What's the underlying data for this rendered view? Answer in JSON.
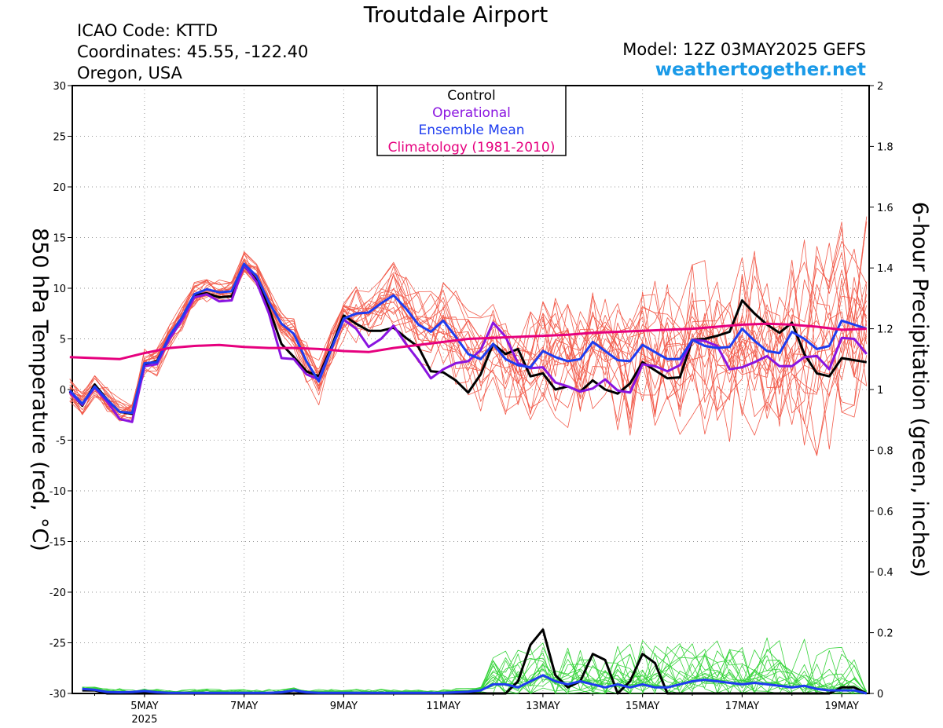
{
  "header": {
    "title": "Troutdale Airport",
    "icao": "ICAO Code: KTTD",
    "coords": "Coordinates: 45.55, -122.40",
    "region": "Oregon, USA",
    "model": "Model: 12Z 03MAY2025 GEFS",
    "site": "weathertogether.net"
  },
  "legend": {
    "items": [
      {
        "label": "Control",
        "color": "#000000"
      },
      {
        "label": "Operational",
        "color": "#8a14e0"
      },
      {
        "label": "Ensemble Mean",
        "color": "#1e3cf0"
      },
      {
        "label": "Climatology (1981-2010)",
        "color": "#e6007e"
      }
    ]
  },
  "chart_data": {
    "type": "line",
    "ylabel": "850 hPa Temperature (red, °C)",
    "y2label": "6-hour Precipitation (green, inches)",
    "ylim": [
      -30,
      30
    ],
    "y2lim": [
      0,
      2
    ],
    "yticks": [
      "30",
      "25",
      "20",
      "15",
      "10",
      "5",
      "0",
      "-5",
      "-10",
      "-15",
      "-20",
      "-25",
      "-30"
    ],
    "y2ticks": [
      "2",
      "1.8",
      "1.6",
      "1.4",
      "1.2",
      "1",
      "0.8",
      "0.6",
      "0.4",
      "0.2",
      "0"
    ],
    "xlim": [
      3.55,
      19.55
    ],
    "xticks": [
      {
        "day": 5,
        "label": "5MAY",
        "sub": "2025"
      },
      {
        "day": 7,
        "label": "7MAY",
        "sub": ""
      },
      {
        "day": 9,
        "label": "9MAY",
        "sub": ""
      },
      {
        "day": 11,
        "label": "11MAY",
        "sub": ""
      },
      {
        "day": 13,
        "label": "13MAY",
        "sub": ""
      },
      {
        "day": 15,
        "label": "15MAY",
        "sub": ""
      },
      {
        "day": 17,
        "label": "17MAY",
        "sub": ""
      },
      {
        "day": 19,
        "label": "19MAY",
        "sub": ""
      }
    ],
    "grid": true,
    "colors": {
      "control": "#000000",
      "operational": "#8a14e0",
      "mean": "#1e3cf0",
      "climatology": "#e6007e",
      "members_temp": "#f25a4a",
      "members_precip": "#36d43a"
    },
    "temperature_series": [
      {
        "name": "Control",
        "x": [
          3.5,
          3.75,
          4.0,
          4.25,
          4.5,
          4.75,
          5.0,
          5.25,
          5.5,
          5.75,
          6.0,
          6.25,
          6.5,
          6.75,
          7.0,
          7.25,
          7.5,
          7.75,
          8.0,
          8.25,
          8.5,
          8.75,
          9.0,
          9.25,
          9.5,
          9.75,
          10.0,
          10.25,
          10.5,
          10.75,
          11.0,
          11.25,
          11.5,
          11.75,
          12.0,
          12.25,
          12.5,
          12.75,
          13.0,
          13.25,
          13.5,
          13.75,
          14.0,
          14.25,
          14.5,
          14.75,
          15.0,
          15.25,
          15.5,
          15.75,
          16.0,
          16.25,
          16.5,
          16.75,
          17.0,
          17.25,
          17.5,
          17.75,
          18.0,
          18.25,
          18.5,
          18.75,
          19.0,
          19.25,
          19.5
        ],
        "values": [
          -0.2,
          -1.6,
          0.5,
          -1.0,
          -2.2,
          -2.4,
          2.5,
          2.8,
          5.2,
          7.0,
          9.3,
          9.5,
          9.1,
          9.2,
          12.2,
          10.8,
          8.0,
          4.5,
          3.2,
          1.8,
          1.3,
          4.2,
          7.3,
          6.5,
          5.8,
          5.8,
          6.1,
          5.1,
          4.2,
          1.8,
          1.7,
          0.9,
          -0.3,
          1.5,
          4.5,
          3.5,
          4.0,
          1.3,
          1.6,
          0.0,
          0.3,
          -0.2,
          0.9,
          0.0,
          -0.4,
          0.6,
          2.7,
          1.9,
          1.1,
          1.2,
          4.9,
          5.0,
          5.3,
          5.7,
          8.8,
          7.5,
          6.4,
          5.6,
          6.6,
          3.5,
          1.6,
          1.3,
          3.1,
          2.9,
          2.7
        ]
      },
      {
        "name": "Operational",
        "x": [
          3.5,
          3.75,
          4.0,
          4.25,
          4.5,
          4.75,
          5.0,
          5.25,
          5.5,
          5.75,
          6.0,
          6.25,
          6.5,
          6.75,
          7.0,
          7.25,
          7.5,
          7.75,
          8.0,
          8.25,
          8.5,
          8.75,
          9.0,
          9.25,
          9.5,
          9.75,
          10.0,
          10.25,
          10.5,
          10.75,
          11.0,
          11.25,
          11.5,
          11.75,
          12.0,
          12.25,
          12.5,
          12.75,
          13.0,
          13.25,
          13.5,
          13.75,
          14.0,
          14.25,
          14.5,
          14.75,
          15.0,
          15.25,
          15.5,
          15.75,
          16.0,
          16.25,
          16.5,
          16.75,
          17.0,
          17.25,
          17.5,
          17.75,
          18.0,
          18.25,
          18.5,
          18.75,
          19.0,
          19.25,
          19.5
        ],
        "values": [
          -0.3,
          -1.5,
          0.2,
          -1.2,
          -2.9,
          -3.2,
          2.3,
          2.5,
          5.0,
          6.8,
          9.1,
          9.4,
          8.7,
          8.8,
          12.3,
          10.6,
          7.5,
          3.1,
          3.0,
          1.5,
          1.0,
          4.0,
          6.9,
          6.0,
          4.2,
          5.0,
          6.3,
          4.5,
          2.9,
          1.1,
          2.0,
          2.6,
          2.8,
          3.9,
          6.6,
          5.2,
          2.6,
          2.1,
          2.2,
          0.7,
          0.3,
          -0.2,
          0.1,
          1.0,
          -0.1,
          -0.3,
          2.5,
          2.3,
          1.8,
          2.4,
          4.9,
          4.8,
          4.3,
          2.0,
          2.2,
          2.7,
          3.3,
          2.3,
          2.3,
          3.2,
          3.3,
          2.0,
          5.1,
          5.0,
          3.5
        ]
      },
      {
        "name": "Ensemble Mean",
        "x": [
          3.5,
          3.75,
          4.0,
          4.25,
          4.5,
          4.75,
          5.0,
          5.25,
          5.5,
          5.75,
          6.0,
          6.25,
          6.5,
          6.75,
          7.0,
          7.25,
          7.5,
          7.75,
          8.0,
          8.25,
          8.5,
          8.75,
          9.0,
          9.25,
          9.5,
          9.75,
          10.0,
          10.25,
          10.5,
          10.75,
          11.0,
          11.25,
          11.5,
          11.75,
          12.0,
          12.25,
          12.5,
          12.75,
          13.0,
          13.25,
          13.5,
          13.75,
          14.0,
          14.25,
          14.5,
          14.75,
          15.0,
          15.25,
          15.5,
          15.75,
          16.0,
          16.25,
          16.5,
          16.75,
          17.0,
          17.25,
          17.5,
          17.75,
          18.0,
          18.25,
          18.5,
          18.75,
          19.0,
          19.25,
          19.5
        ],
        "values": [
          -0.1,
          -1.4,
          0.3,
          -1.0,
          -2.2,
          -2.3,
          2.6,
          2.7,
          5.3,
          7.1,
          9.4,
          9.9,
          9.6,
          9.7,
          12.4,
          11.2,
          8.6,
          6.5,
          5.5,
          2.8,
          0.8,
          4.0,
          7.0,
          7.5,
          7.6,
          8.5,
          9.3,
          8.0,
          6.4,
          5.7,
          6.8,
          5.2,
          3.5,
          3.0,
          4.5,
          3.0,
          2.4,
          2.2,
          3.8,
          3.2,
          2.8,
          3.0,
          4.7,
          3.8,
          2.9,
          2.8,
          4.4,
          3.7,
          3.0,
          3.0,
          4.9,
          4.3,
          4.1,
          4.2,
          6.0,
          4.8,
          3.8,
          3.6,
          5.7,
          5.0,
          4.0,
          4.3,
          6.8,
          6.4,
          6.0
        ]
      },
      {
        "name": "Climatology (1981-2010)",
        "x": [
          3.5,
          4.0,
          4.5,
          5.0,
          5.5,
          6.0,
          6.5,
          7.0,
          7.5,
          8.0,
          8.5,
          9.0,
          9.5,
          10.0,
          10.5,
          11.0,
          11.5,
          12.0,
          12.5,
          13.0,
          13.5,
          14.0,
          14.5,
          15.0,
          15.5,
          16.0,
          16.5,
          17.0,
          17.5,
          18.0,
          18.5,
          19.0,
          19.5
        ],
        "values": [
          3.2,
          3.1,
          3.0,
          3.6,
          4.1,
          4.3,
          4.4,
          4.2,
          4.1,
          4.1,
          4.0,
          3.8,
          3.7,
          4.1,
          4.4,
          4.7,
          5.0,
          5.1,
          5.2,
          5.3,
          5.4,
          5.6,
          5.7,
          5.8,
          5.9,
          6.0,
          6.2,
          6.4,
          6.5,
          6.4,
          6.2,
          5.9,
          6.0
        ]
      }
    ],
    "precipitation_series": [
      {
        "name": "Control",
        "x": [
          3.75,
          4.0,
          4.25,
          4.5,
          4.75,
          5.0,
          5.25,
          5.5,
          5.75,
          6.0,
          6.25,
          6.5,
          6.75,
          7.0,
          7.25,
          7.5,
          7.75,
          8.0,
          8.25,
          8.5,
          8.75,
          9.0,
          9.25,
          9.5,
          9.75,
          10.0,
          10.25,
          10.5,
          10.75,
          11.0,
          11.25,
          11.5,
          11.75,
          12.0,
          12.25,
          12.5,
          12.75,
          13.0,
          13.25,
          13.5,
          13.75,
          14.0,
          14.25,
          14.5,
          14.75,
          15.0,
          15.25,
          15.5,
          15.75,
          16.0,
          16.25,
          16.5,
          16.75,
          17.0,
          17.25,
          17.5,
          17.75,
          18.0,
          18.25,
          18.5,
          18.75,
          19.0,
          19.25,
          19.5
        ],
        "values": [
          0.01,
          0.01,
          0.0,
          0.0,
          0.0,
          0.0,
          0.0,
          0.0,
          0.0,
          0.0,
          0.0,
          0.0,
          0.0,
          0.0,
          0.0,
          0.0,
          0.0,
          0.0,
          0.0,
          0.0,
          0.0,
          0.0,
          0.0,
          0.0,
          0.0,
          0.0,
          0.0,
          0.0,
          0.0,
          0.0,
          0.0,
          0.0,
          0.0,
          0.0,
          0.0,
          0.04,
          0.16,
          0.21,
          0.06,
          0.02,
          0.04,
          0.13,
          0.11,
          0.0,
          0.04,
          0.13,
          0.1,
          0.0,
          0.0,
          0.0,
          0.0,
          0.0,
          0.0,
          0.0,
          0.0,
          0.0,
          0.0,
          0.0,
          0.0,
          0.0,
          0.0,
          0.02,
          0.02,
          0.0
        ]
      },
      {
        "name": "Ensemble Mean",
        "x": [
          3.75,
          4.0,
          4.25,
          4.5,
          4.75,
          5.0,
          5.25,
          5.5,
          5.75,
          6.0,
          6.25,
          6.5,
          6.75,
          7.0,
          7.25,
          7.5,
          7.75,
          8.0,
          8.25,
          8.5,
          8.75,
          9.0,
          9.25,
          9.5,
          9.75,
          10.0,
          10.25,
          10.5,
          10.75,
          11.0,
          11.25,
          11.5,
          11.75,
          12.0,
          12.25,
          12.5,
          12.75,
          13.0,
          13.25,
          13.5,
          13.75,
          14.0,
          14.25,
          14.5,
          14.75,
          15.0,
          15.25,
          15.5,
          15.75,
          16.0,
          16.25,
          16.5,
          16.75,
          17.0,
          17.25,
          17.5,
          17.75,
          18.0,
          18.25,
          18.5,
          18.75,
          19.0,
          19.25,
          19.5
        ],
        "values": [
          0.015,
          0.012,
          0.005,
          0.004,
          0.005,
          0.008,
          0.004,
          0.002,
          0.002,
          0.002,
          0.002,
          0.002,
          0.002,
          0.002,
          0.002,
          0.002,
          0.004,
          0.01,
          0.004,
          0.002,
          0.002,
          0.002,
          0.002,
          0.002,
          0.002,
          0.002,
          0.002,
          0.002,
          0.002,
          0.002,
          0.004,
          0.006,
          0.01,
          0.03,
          0.03,
          0.02,
          0.04,
          0.06,
          0.04,
          0.03,
          0.04,
          0.03,
          0.02,
          0.03,
          0.02,
          0.03,
          0.02,
          0.02,
          0.03,
          0.04,
          0.045,
          0.04,
          0.035,
          0.03,
          0.035,
          0.03,
          0.025,
          0.02,
          0.025,
          0.015,
          0.01,
          0.01,
          0.01,
          0.0
        ]
      }
    ]
  }
}
